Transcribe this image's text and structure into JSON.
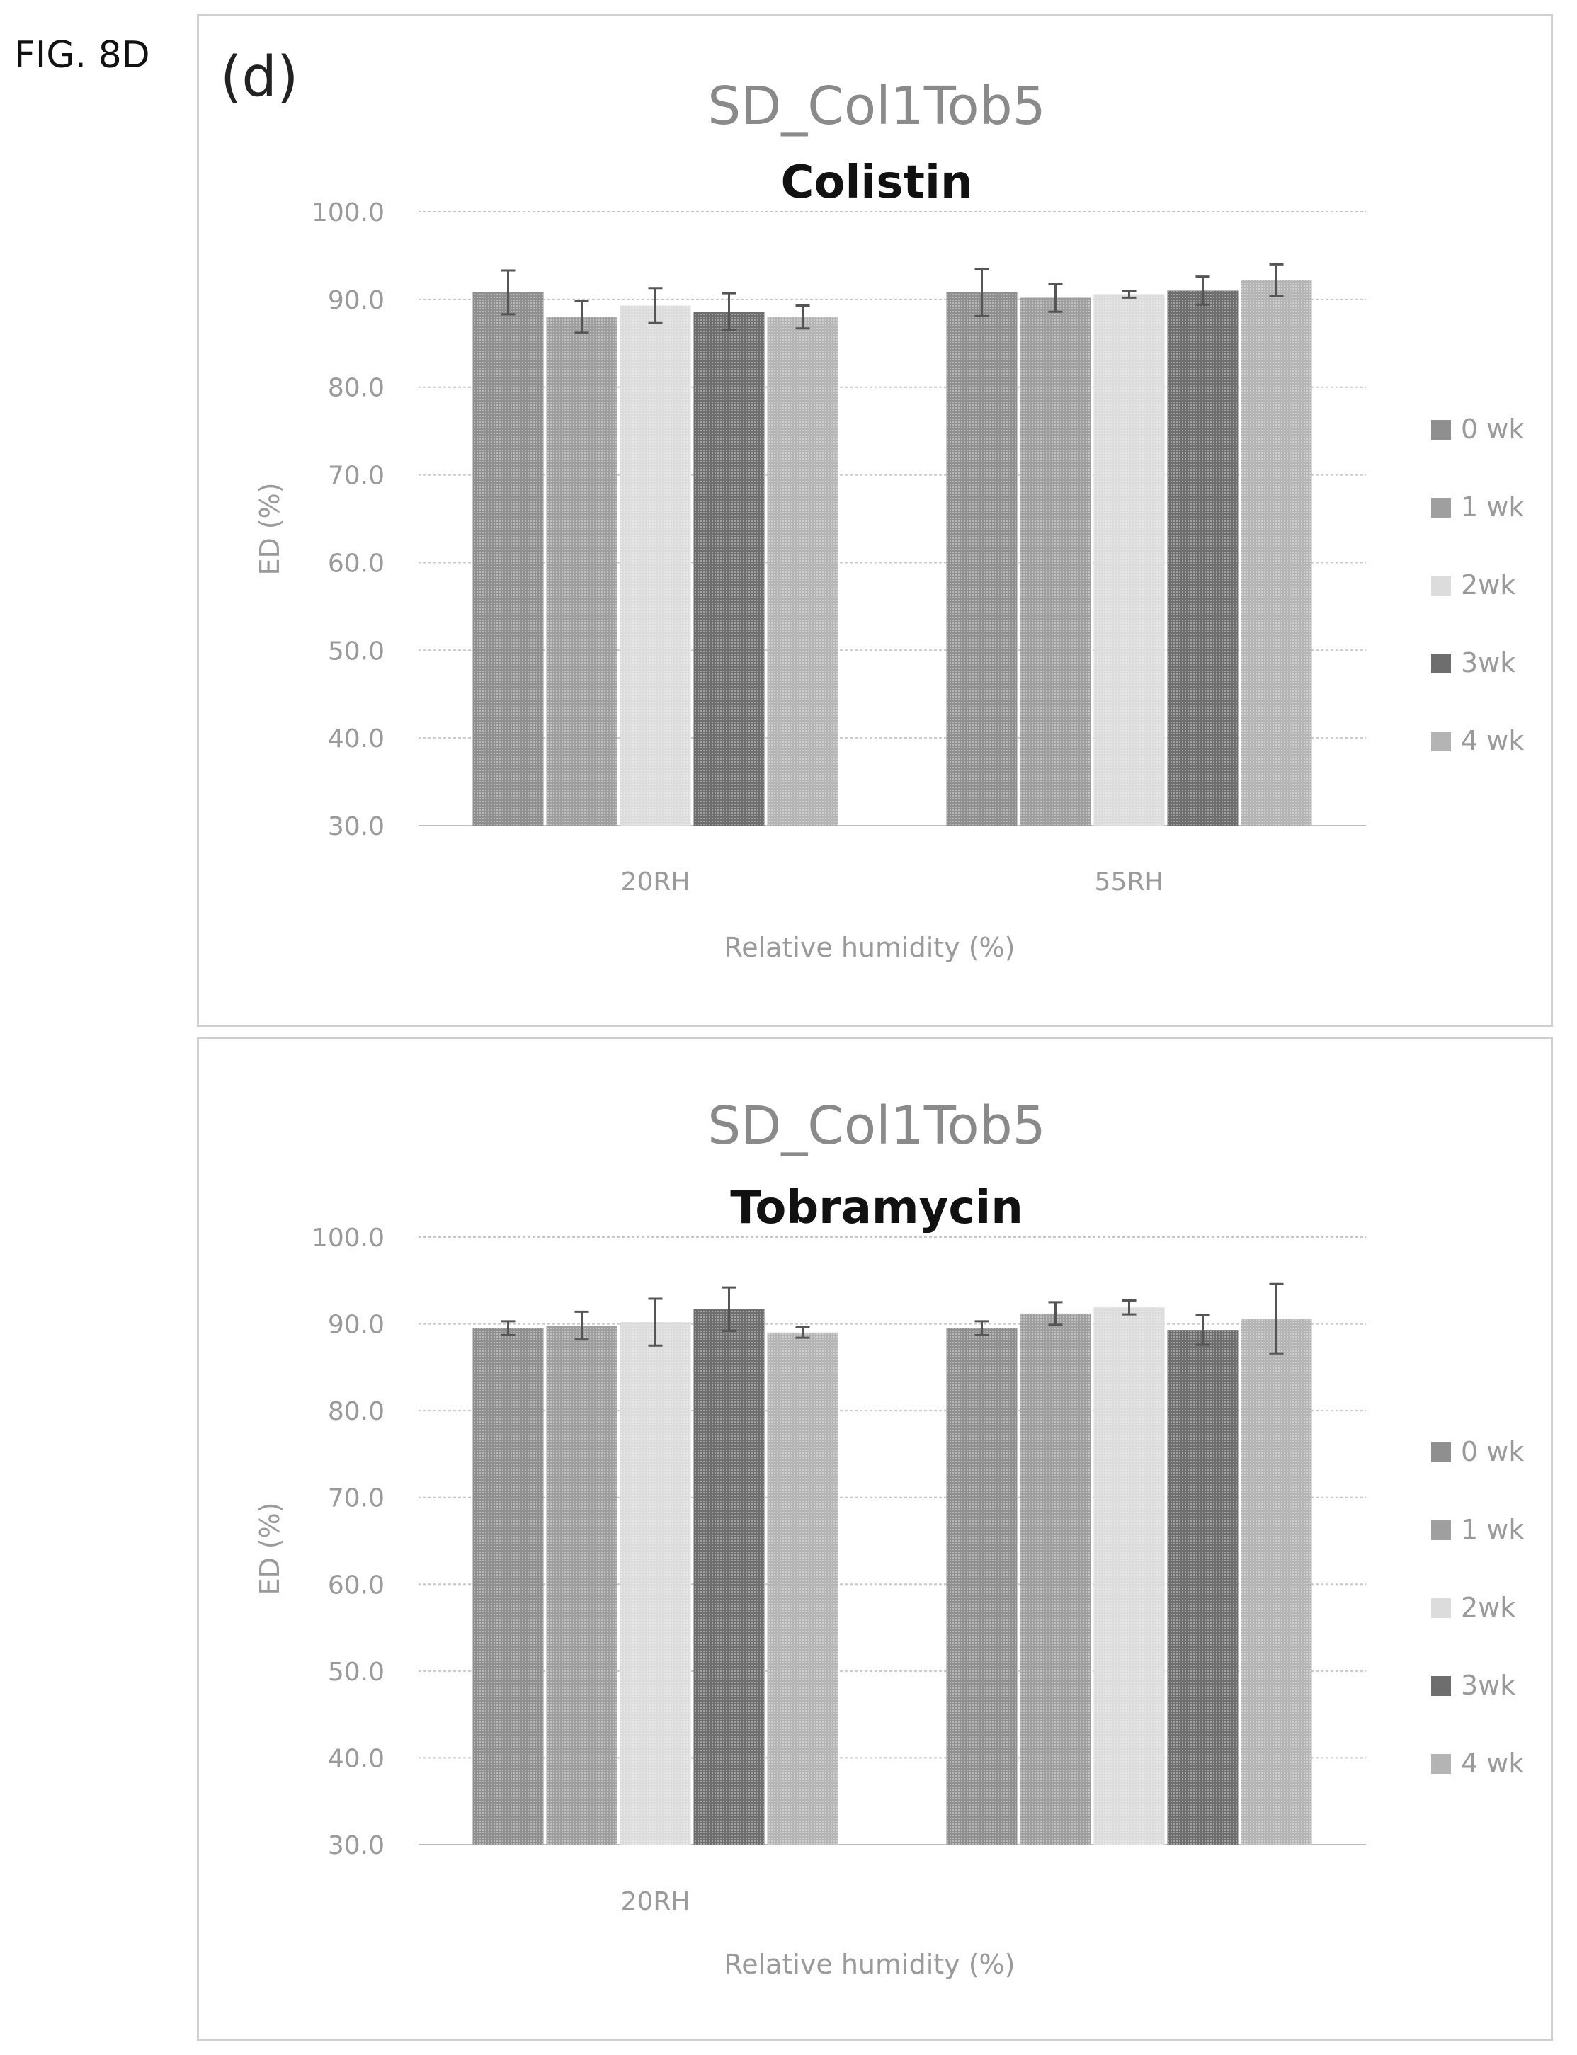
{
  "figure_label": "FIG. 8D",
  "colors": {
    "0 wk": "#8f8f8f",
    "1 wk": "#9f9f9f",
    "2wk": "#dcdcdc",
    "3wk": "#6e6e6e",
    "4 wk": "#b4b4b4"
  },
  "chart_data": [
    {
      "type": "bar",
      "panel_label": "(d)",
      "title": "SD_Col1Tob5",
      "subtitle": "Colistin",
      "xlabel": "Relative humidity (%)",
      "ylabel": "ED (%)",
      "ylim": [
        30,
        100
      ],
      "yticks": [
        "100.0",
        "90.0",
        "80.0",
        "70.0",
        "60.0",
        "50.0",
        "40.0",
        "30.0"
      ],
      "grid": true,
      "legend_position": "right",
      "categories": [
        "20RH",
        "55RH"
      ],
      "series": [
        {
          "name": "0 wk",
          "values": [
            90.8,
            90.8
          ],
          "errors": [
            2.5,
            2.7
          ]
        },
        {
          "name": "1 wk",
          "values": [
            88.0,
            90.2
          ],
          "errors": [
            1.8,
            1.6
          ]
        },
        {
          "name": "2wk",
          "values": [
            89.3,
            90.6
          ],
          "errors": [
            2.0,
            0.4
          ]
        },
        {
          "name": "3wk",
          "values": [
            88.6,
            91.0
          ],
          "errors": [
            2.1,
            1.6
          ]
        },
        {
          "name": "4 wk",
          "values": [
            88.0,
            92.2
          ],
          "errors": [
            1.3,
            1.8
          ]
        }
      ]
    },
    {
      "type": "bar",
      "title": "SD_Col1Tob5",
      "subtitle": "Tobramycin",
      "xlabel": "Relative humidity (%)",
      "ylabel": "ED (%)",
      "ylim": [
        30,
        100
      ],
      "yticks": [
        "100.0",
        "90.0",
        "80.0",
        "70.0",
        "60.0",
        "50.0",
        "40.0",
        "30.0"
      ],
      "grid": true,
      "legend_position": "right",
      "categories": [
        "20RH",
        ""
      ],
      "series": [
        {
          "name": "0 wk",
          "values": [
            89.5,
            89.5
          ],
          "errors": [
            0.8,
            0.8
          ]
        },
        {
          "name": "1 wk",
          "values": [
            89.8,
            91.2
          ],
          "errors": [
            1.6,
            1.3
          ]
        },
        {
          "name": "2wk",
          "values": [
            90.2,
            91.9
          ],
          "errors": [
            2.7,
            0.8
          ]
        },
        {
          "name": "3wk",
          "values": [
            91.7,
            89.3
          ],
          "errors": [
            2.5,
            1.7
          ]
        },
        {
          "name": "4 wk",
          "values": [
            89.0,
            90.6
          ],
          "errors": [
            0.6,
            4.0
          ]
        }
      ]
    }
  ]
}
